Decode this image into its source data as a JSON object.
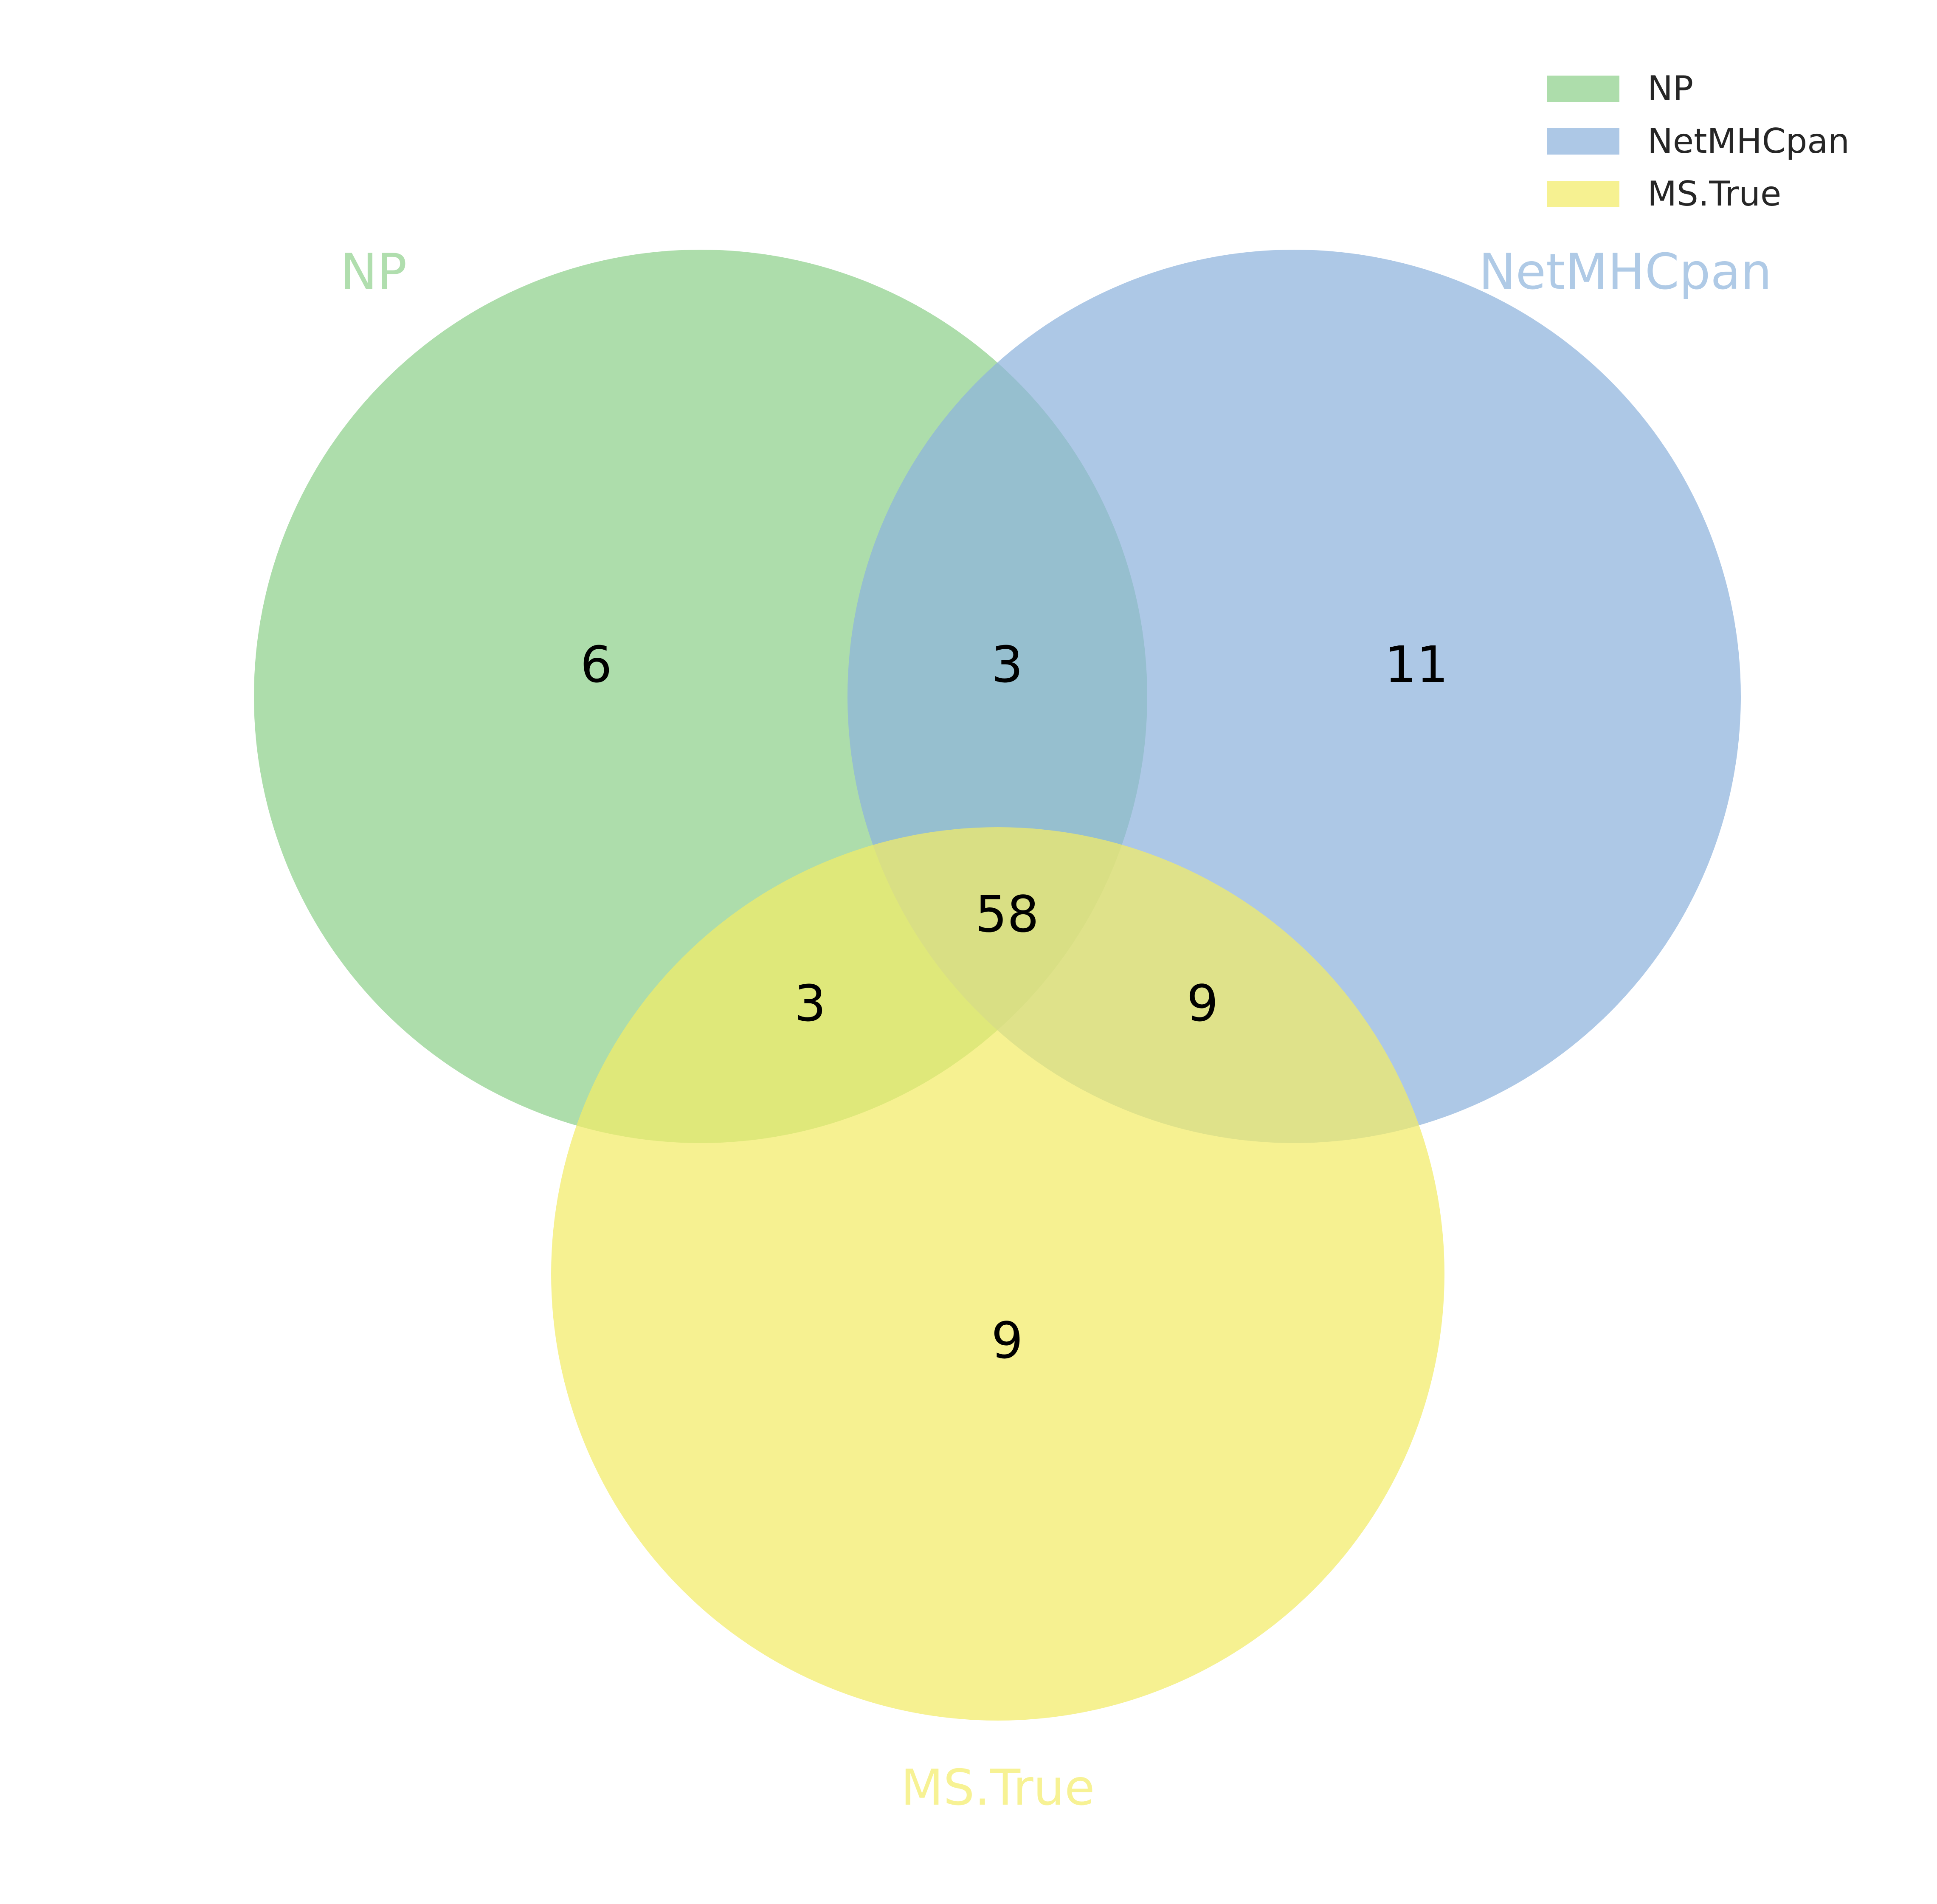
{
  "sets": [
    {
      "id": "np",
      "label": "NP",
      "color": "#8ed08b"
    },
    {
      "id": "netmhcpan",
      "label": "NetMHCpan",
      "color": "#8db3dc"
    },
    {
      "id": "ms_true",
      "label": "MS.True",
      "color": "#f3ec67"
    }
  ],
  "regions": {
    "np_only": "6",
    "np_netmhcpan": "3",
    "netmhcpan_only": "11",
    "all_three": "58",
    "np_ms_true": "3",
    "netmhcpan_ms_true": "9",
    "ms_true_only": "9"
  },
  "legend": {
    "placement": "top-right",
    "items": [
      "NP",
      "NetMHCpan",
      "MS.True"
    ]
  }
}
